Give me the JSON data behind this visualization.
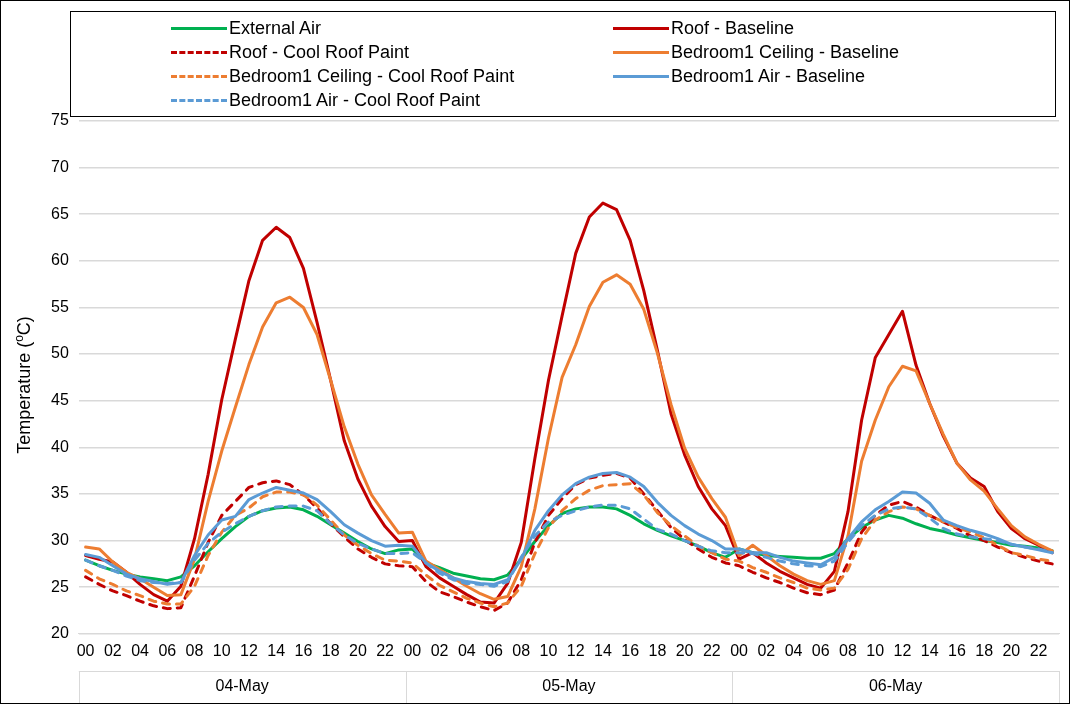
{
  "chart_data": {
    "type": "line",
    "ylabel": "Temperature ($^{o}$C)",
    "categories": [
      "00",
      null,
      "02",
      null,
      "04",
      null,
      "06",
      null,
      "08",
      null,
      "10",
      null,
      "12",
      null,
      "14",
      null,
      "16",
      null,
      "18",
      null,
      "20",
      null,
      "22",
      null,
      "00",
      null,
      "02",
      null,
      "04",
      null,
      "06",
      null,
      "08",
      null,
      "10",
      null,
      "12",
      null,
      "14",
      null,
      "16",
      null,
      "18",
      null,
      "20",
      null,
      "22",
      null,
      "00",
      null,
      "02",
      null,
      "04",
      null,
      "06",
      null,
      "08",
      null,
      "10",
      null,
      "12",
      null,
      "14",
      null,
      "16",
      null,
      "18",
      null,
      "20",
      null,
      "22",
      null
    ],
    "annotations": [
      "04-May",
      "05-May",
      "06-May"
    ],
    "ylim": [
      20,
      75
    ],
    "yticks": [
      20,
      25,
      30,
      35,
      40,
      45,
      50,
      55,
      60,
      65,
      70,
      75
    ],
    "grid": "y",
    "legend": "top",
    "marker": "none",
    "series": [
      {
        "name": "External Air",
        "color": "#00b050",
        "line_style": "solid",
        "values": [
          27.9,
          27.3,
          26.8,
          26.4,
          26.1,
          25.9,
          25.7,
          26.1,
          27.3,
          28.8,
          30.2,
          31.5,
          32.6,
          33.2,
          33.5,
          33.6,
          33.3,
          32.6,
          31.7,
          30.8,
          29.9,
          29.1,
          28.6,
          29.0,
          29.1,
          27.6,
          27.1,
          26.5,
          26.2,
          25.9,
          25.8,
          26.3,
          28.0,
          29.9,
          31.6,
          32.9,
          33.4,
          33.6,
          33.6,
          33.4,
          32.7,
          31.8,
          31.1,
          30.5,
          30.0,
          29.4,
          28.7,
          28.2,
          29.1,
          28.7,
          28.4,
          28.3,
          28.2,
          28.1,
          28.1,
          28.6,
          30.2,
          31.4,
          32.2,
          32.7,
          32.4,
          31.8,
          31.3,
          31.0,
          30.6,
          30.3,
          30.0,
          29.8,
          29.5,
          29.4,
          29.2,
          28.9
        ]
      },
      {
        "name": "Roof - Baseline",
        "color": "#c00000",
        "line_style": "solid",
        "values": [
          28.4,
          28.0,
          27.7,
          26.6,
          25.3,
          24.2,
          23.5,
          25.1,
          30.2,
          37.1,
          45.1,
          51.6,
          57.9,
          62.2,
          63.6,
          62.5,
          59.2,
          53.4,
          47.2,
          40.7,
          36.6,
          33.7,
          31.5,
          29.9,
          30.0,
          27.2,
          26.0,
          25.1,
          24.2,
          23.4,
          23.3,
          25.4,
          29.8,
          38.8,
          47.2,
          54.1,
          60.8,
          64.7,
          66.2,
          65.5,
          62.2,
          56.8,
          50.4,
          43.6,
          39.2,
          35.8,
          33.4,
          31.6,
          28.0,
          28.7,
          27.6,
          26.7,
          26.0,
          25.3,
          24.9,
          26.7,
          33.1,
          42.9,
          49.6,
          52.1,
          54.6,
          48.8,
          44.7,
          41.2,
          38.3,
          36.7,
          35.8,
          33.1,
          31.3,
          30.2,
          29.5,
          28.7
        ]
      },
      {
        "name": "Roof - Cool Roof Paint",
        "color": "#c00000",
        "line_style": "dashed",
        "values": [
          26.1,
          25.3,
          24.6,
          24.1,
          23.5,
          23.0,
          22.7,
          22.8,
          26.2,
          29.8,
          32.7,
          34.2,
          35.7,
          36.2,
          36.4,
          36.0,
          34.9,
          33.5,
          31.8,
          30.4,
          29.1,
          28.2,
          27.5,
          27.3,
          27.2,
          25.6,
          24.5,
          24.0,
          23.4,
          22.9,
          22.5,
          23.3,
          25.8,
          29.8,
          32.7,
          34.5,
          36.0,
          36.7,
          37.0,
          37.2,
          36.7,
          35.0,
          33.2,
          31.4,
          30.1,
          29.1,
          28.2,
          27.6,
          27.3,
          26.6,
          26.0,
          25.5,
          24.9,
          24.4,
          24.2,
          24.7,
          27.6,
          30.9,
          32.7,
          33.8,
          34.2,
          33.6,
          32.7,
          32.0,
          31.3,
          30.5,
          30.0,
          29.3,
          28.7,
          28.2,
          27.8,
          27.5
        ]
      },
      {
        "name": "Bedroom1 Ceiling - Baseline",
        "color": "#ed7d31",
        "line_style": "solid",
        "values": [
          29.3,
          29.1,
          27.7,
          26.6,
          25.9,
          25.0,
          24.1,
          24.2,
          28.0,
          34.2,
          39.6,
          44.3,
          48.9,
          52.9,
          55.5,
          56.1,
          55.0,
          52.1,
          47.2,
          42.2,
          38.2,
          34.9,
          32.8,
          30.8,
          30.9,
          27.8,
          26.9,
          26.0,
          25.1,
          24.3,
          23.7,
          24.0,
          27.2,
          33.4,
          41.0,
          47.5,
          51.0,
          55.1,
          57.7,
          58.5,
          57.5,
          54.8,
          50.1,
          44.6,
          39.9,
          36.8,
          34.5,
          32.5,
          28.4,
          29.5,
          28.4,
          27.3,
          26.4,
          25.7,
          25.3,
          25.7,
          30.5,
          38.5,
          42.9,
          46.5,
          48.7,
          48.2,
          44.7,
          41.4,
          38.3,
          36.5,
          35.3,
          33.4,
          31.6,
          30.4,
          29.6,
          28.9
        ]
      },
      {
        "name": "Bedroom1 Ceiling - Cool Roof Paint",
        "color": "#ed7d31",
        "line_style": "dashed",
        "values": [
          26.8,
          25.9,
          25.3,
          24.6,
          24.1,
          23.5,
          23.2,
          23.2,
          25.1,
          28.4,
          30.9,
          32.7,
          33.5,
          34.7,
          35.2,
          35.2,
          34.9,
          33.8,
          32.2,
          30.6,
          29.5,
          28.6,
          27.9,
          27.8,
          27.6,
          26.3,
          25.2,
          24.5,
          23.8,
          23.3,
          22.9,
          23.3,
          25.1,
          28.6,
          31.4,
          33.2,
          34.5,
          35.4,
          35.9,
          36.0,
          36.1,
          34.9,
          33.0,
          31.6,
          30.5,
          29.4,
          28.7,
          28.0,
          27.8,
          27.1,
          26.6,
          26.0,
          25.5,
          24.9,
          24.7,
          24.9,
          26.9,
          30.2,
          32.2,
          33.1,
          33.6,
          33.4,
          32.7,
          32.0,
          31.4,
          30.9,
          30.3,
          29.5,
          28.7,
          28.4,
          28.0,
          27.8
        ]
      },
      {
        "name": "Bedroom1 Air - Baseline",
        "color": "#5b9bd5",
        "line_style": "solid",
        "values": [
          28.5,
          28.2,
          27.3,
          26.4,
          25.9,
          25.6,
          25.3,
          25.5,
          28.4,
          30.6,
          32.2,
          32.6,
          34.4,
          35.1,
          35.7,
          35.4,
          35.1,
          34.4,
          33.1,
          31.7,
          30.8,
          30.0,
          29.4,
          29.5,
          29.4,
          27.6,
          26.7,
          26.0,
          25.6,
          25.4,
          25.3,
          25.8,
          28.0,
          31.1,
          33.2,
          34.9,
          36.1,
          36.8,
          37.2,
          37.3,
          36.8,
          35.8,
          34.1,
          32.7,
          31.6,
          30.7,
          30.0,
          29.1,
          29.1,
          28.7,
          28.7,
          28.2,
          27.8,
          27.6,
          27.4,
          28.2,
          30.2,
          32.0,
          33.3,
          34.2,
          35.2,
          35.1,
          34.0,
          32.2,
          31.6,
          31.1,
          30.7,
          30.2,
          29.6,
          29.3,
          29.0,
          28.7
        ]
      },
      {
        "name": "Bedroom1 Air - Cool Roof Paint",
        "color": "#5b9bd5",
        "line_style": "dashed",
        "values": [
          27.9,
          27.3,
          26.8,
          26.2,
          25.7,
          25.5,
          25.4,
          25.5,
          27.9,
          29.7,
          30.9,
          31.8,
          32.6,
          33.2,
          33.6,
          33.7,
          33.7,
          33.2,
          31.8,
          30.6,
          29.7,
          29.1,
          28.6,
          28.6,
          28.7,
          27.6,
          26.5,
          25.8,
          25.4,
          25.3,
          25.1,
          25.6,
          28.2,
          30.5,
          32.0,
          32.7,
          33.2,
          33.6,
          33.8,
          33.8,
          33.4,
          32.3,
          31.2,
          30.7,
          30.0,
          29.4,
          28.9,
          28.7,
          28.7,
          28.6,
          28.2,
          27.8,
          27.5,
          27.3,
          27.2,
          27.8,
          29.8,
          31.6,
          32.7,
          33.4,
          33.6,
          33.4,
          32.4,
          31.3,
          30.7,
          30.4,
          30.2,
          30.0,
          29.6,
          29.3,
          29.1,
          28.7
        ]
      }
    ]
  }
}
